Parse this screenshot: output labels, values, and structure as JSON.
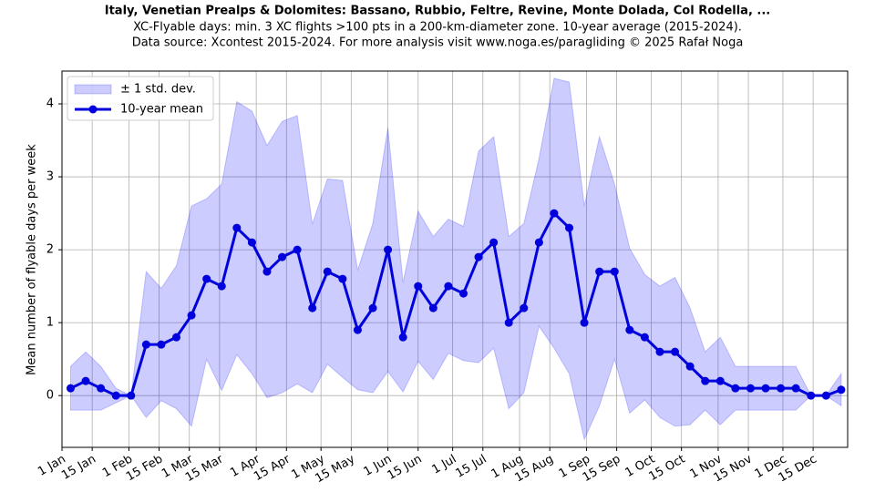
{
  "chart_data": {
    "type": "band-line",
    "title": "Italy, Venetian Prealps & Dolomites: Bassano, Rubbio, Feltre, Revine, Monte Dolada, Col Rodella, ...",
    "subtitle": [
      "XC-Flyable days: min. 3 XC flights >100 pts in a 200-km-diameter zone. 10-year average (2015-2024).",
      "Data source: Xcontest 2015-2024. For more analysis visit www.noga.es/paragliding © 2025 Rafał Noga"
    ],
    "ylabel": "Mean number of flyable days per week",
    "x": [
      4,
      11,
      18,
      25,
      32,
      39,
      46,
      53,
      60,
      67,
      74,
      81,
      88,
      95,
      102,
      109,
      116,
      123,
      130,
      137,
      144,
      151,
      158,
      165,
      172,
      179,
      186,
      193,
      200,
      207,
      214,
      221,
      228,
      235,
      242,
      249,
      256,
      263,
      270,
      277,
      284,
      291,
      298,
      305,
      312,
      319,
      326,
      333,
      340,
      347,
      354,
      361
    ],
    "series": [
      {
        "name": "± 1 std. dev.",
        "color": "#0000ff",
        "upper": [
          0.4,
          0.6,
          0.4,
          0.1,
          0,
          1.7,
          1.47,
          1.78,
          2.6,
          2.7,
          2.9,
          4.03,
          3.9,
          3.43,
          3.76,
          3.84,
          2.35,
          2.97,
          2.95,
          1.72,
          2.36,
          3.67,
          1.55,
          2.53,
          2.18,
          2.42,
          2.32,
          3.35,
          3.55,
          2.18,
          2.36,
          3.25,
          4.35,
          4.3,
          2.6,
          3.55,
          2.9,
          2.02,
          1.66,
          1.5,
          1.62,
          1.2,
          0.6,
          0.8,
          0.4,
          0.4,
          0.4,
          0.4,
          0.4,
          0,
          0,
          0.3
        ],
        "lower": [
          -0.2,
          -0.2,
          -0.2,
          -0.1,
          0,
          -0.3,
          -0.07,
          -0.18,
          -0.42,
          0.5,
          0.07,
          0.56,
          0.3,
          -0.03,
          0.04,
          0.16,
          0.04,
          0.43,
          0.25,
          0.08,
          0.04,
          0.33,
          0.05,
          0.47,
          0.22,
          0.58,
          0.48,
          0.45,
          0.65,
          -0.18,
          0.04,
          0.95,
          0.65,
          0.3,
          -0.6,
          -0.14,
          0.5,
          -0.24,
          -0.06,
          -0.3,
          -0.42,
          -0.4,
          -0.2,
          -0.4,
          -0.2,
          -0.2,
          -0.2,
          -0.2,
          -0.2,
          0,
          0,
          -0.14
        ]
      },
      {
        "name": "10-year mean",
        "color": "#0000dd",
        "values": [
          0.1,
          0.2,
          0.1,
          0,
          0,
          0.7,
          0.7,
          0.8,
          1.1,
          1.6,
          1.5,
          2.3,
          2.1,
          1.7,
          1.9,
          2.0,
          1.2,
          1.7,
          1.6,
          0.9,
          1.2,
          2.0,
          0.8,
          1.5,
          1.2,
          1.5,
          1.4,
          1.9,
          2.1,
          1.0,
          1.2,
          2.1,
          2.5,
          2.3,
          1.0,
          1.7,
          1.7,
          0.9,
          0.8,
          0.6,
          0.6,
          0.4,
          0.2,
          0.2,
          0.1,
          0.1,
          0.1,
          0.1,
          0.1,
          0,
          0,
          0.08
        ]
      }
    ],
    "xlim": [
      0,
      364
    ],
    "ylim": [
      -0.71,
      4.45
    ],
    "xticks": [
      {
        "value": 0,
        "label": "1 Jan"
      },
      {
        "value": 14,
        "label": "15 Jan"
      },
      {
        "value": 31,
        "label": "1 Feb"
      },
      {
        "value": 45,
        "label": "15 Feb"
      },
      {
        "value": 59,
        "label": "1 Mar"
      },
      {
        "value": 73,
        "label": "15 Mar"
      },
      {
        "value": 90,
        "label": "1 Apr"
      },
      {
        "value": 104,
        "label": "15 Apr"
      },
      {
        "value": 120,
        "label": "1 May"
      },
      {
        "value": 134,
        "label": "15 May"
      },
      {
        "value": 151,
        "label": "1 Jun"
      },
      {
        "value": 165,
        "label": "15 Jun"
      },
      {
        "value": 181,
        "label": "1 Jul"
      },
      {
        "value": 195,
        "label": "15 Jul"
      },
      {
        "value": 212,
        "label": "1 Aug"
      },
      {
        "value": 226,
        "label": "15 Aug"
      },
      {
        "value": 243,
        "label": "1 Sep"
      },
      {
        "value": 257,
        "label": "15 Sep"
      },
      {
        "value": 273,
        "label": "1 Oct"
      },
      {
        "value": 287,
        "label": "15 Oct"
      },
      {
        "value": 304,
        "label": "1 Nov"
      },
      {
        "value": 318,
        "label": "15 Nov"
      },
      {
        "value": 334,
        "label": "1 Dec"
      },
      {
        "value": 348,
        "label": "15 Dec"
      }
    ],
    "yticks": [
      0,
      1,
      2,
      3,
      4
    ],
    "grid": true,
    "legend": "upper left"
  }
}
